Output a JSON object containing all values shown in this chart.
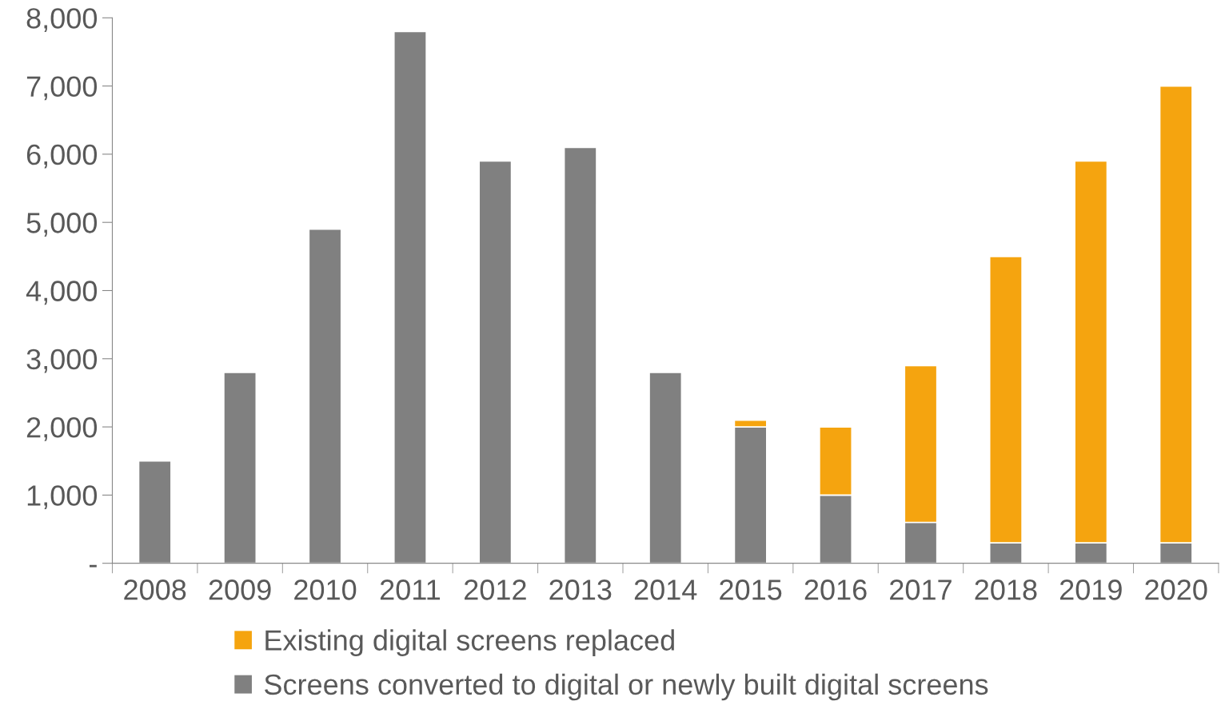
{
  "chart_data": {
    "type": "bar",
    "stacked": true,
    "categories": [
      "2008",
      "2009",
      "2010",
      "2011",
      "2012",
      "2013",
      "2014",
      "2015",
      "2016",
      "2017",
      "2018",
      "2019",
      "2020"
    ],
    "series": [
      {
        "name": "Screens converted to digital or newly built digital screens",
        "color": "#808080",
        "values": [
          1500,
          2800,
          4900,
          7800,
          5900,
          6100,
          2800,
          2000,
          1000,
          600,
          300,
          300,
          300
        ]
      },
      {
        "name": "Existing digital screens replaced",
        "color": "#f5a40f",
        "values": [
          null,
          null,
          null,
          null,
          null,
          null,
          null,
          100,
          1000,
          2300,
          4200,
          5600,
          6700
        ]
      }
    ],
    "ylim": [
      0,
      8000
    ],
    "yticks": [
      {
        "value": 0,
        "label": "-"
      },
      {
        "value": 1000,
        "label": "1,000"
      },
      {
        "value": 2000,
        "label": "2,000"
      },
      {
        "value": 3000,
        "label": "3,000"
      },
      {
        "value": 4000,
        "label": "4,000"
      },
      {
        "value": 5000,
        "label": "5,000"
      },
      {
        "value": 6000,
        "label": "6,000"
      },
      {
        "value": 7000,
        "label": "7,000"
      },
      {
        "value": 8000,
        "label": "8,000"
      }
    ],
    "grid": false,
    "legend": "bottom"
  }
}
